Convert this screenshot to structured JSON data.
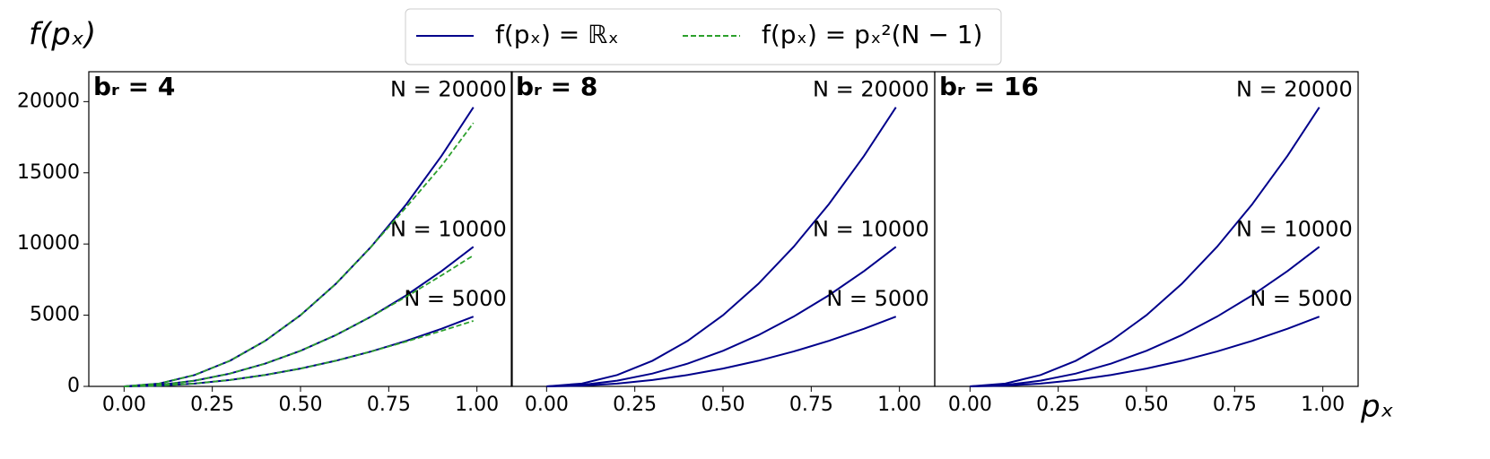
{
  "chart_data": [
    {
      "type": "line",
      "title": "bᵣ = 4",
      "ylabel": "f(pₓ)",
      "x": [
        0,
        0.1,
        0.2,
        0.3,
        0.4,
        0.5,
        0.6,
        0.7,
        0.8,
        0.9,
        0.99
      ],
      "xlim": [
        -0.1,
        1.1
      ],
      "ylim": [
        0,
        22100
      ],
      "xticks": [
        {
          "value": 0,
          "label": "0.00"
        },
        {
          "value": 0.25,
          "label": "0.25"
        },
        {
          "value": 0.5,
          "label": "0.50"
        },
        {
          "value": 0.75,
          "label": "0.75"
        },
        {
          "value": 1,
          "label": "1.00"
        }
      ],
      "yticks": [
        0,
        5000,
        10000,
        15000,
        20000
      ],
      "series": [
        {
          "name": "f(pₓ) = ℝₓ",
          "label": "N = 20000",
          "color": "#00008b",
          "values": [
            0,
            200,
            800,
            1800,
            3200,
            5000,
            7200,
            9800,
            12800,
            16200,
            19602
          ]
        },
        {
          "name": "f(pₓ) = ℝₓ",
          "label": "N = 10000",
          "color": "#00008b",
          "values": [
            0,
            100,
            400,
            900,
            1600,
            2500,
            3600,
            4900,
            6400,
            8100,
            9801
          ]
        },
        {
          "name": "f(pₓ) = ℝₓ",
          "label": "N = 5000",
          "color": "#00008b",
          "values": [
            0,
            50,
            200,
            450,
            800,
            1250,
            1800,
            2450,
            3200,
            4050,
            4900
          ]
        },
        {
          "name": "f(pₓ) = pₓ²(N − 1)",
          "color": "#2ca02c",
          "dashed": true,
          "values": [
            0,
            200,
            800,
            1800,
            3200,
            5000,
            7200,
            9800,
            12600,
            15500,
            18500
          ]
        },
        {
          "name": "f(pₓ) = pₓ²(N − 1)",
          "color": "#2ca02c",
          "dashed": true,
          "values": [
            0,
            100,
            400,
            900,
            1600,
            2500,
            3600,
            4900,
            6300,
            7800,
            9200
          ]
        },
        {
          "name": "f(pₓ) = pₓ²(N − 1)",
          "color": "#2ca02c",
          "dashed": true,
          "values": [
            0,
            50,
            200,
            450,
            800,
            1250,
            1800,
            2450,
            3150,
            3900,
            4600
          ]
        }
      ]
    },
    {
      "type": "line",
      "title": "bᵣ = 8",
      "x": [
        0,
        0.1,
        0.2,
        0.3,
        0.4,
        0.5,
        0.6,
        0.7,
        0.8,
        0.9,
        0.99
      ],
      "xlim": [
        -0.1,
        1.1
      ],
      "ylim": [
        0,
        22100
      ],
      "xticks": [
        {
          "value": 0,
          "label": "0.00"
        },
        {
          "value": 0.25,
          "label": "0.25"
        },
        {
          "value": 0.5,
          "label": "0.50"
        },
        {
          "value": 0.75,
          "label": "0.75"
        },
        {
          "value": 1,
          "label": "1.00"
        }
      ],
      "series": [
        {
          "name": "f(pₓ) = ℝₓ",
          "label": "N = 20000",
          "color": "#00008b",
          "values": [
            0,
            200,
            800,
            1800,
            3200,
            5000,
            7200,
            9800,
            12800,
            16200,
            19602
          ]
        },
        {
          "name": "f(pₓ) = ℝₓ",
          "label": "N = 10000",
          "color": "#00008b",
          "values": [
            0,
            100,
            400,
            900,
            1600,
            2500,
            3600,
            4900,
            6400,
            8100,
            9801
          ]
        },
        {
          "name": "f(pₓ) = ℝₓ",
          "label": "N = 5000",
          "color": "#00008b",
          "values": [
            0,
            50,
            200,
            450,
            800,
            1250,
            1800,
            2450,
            3200,
            4050,
            4900
          ]
        }
      ]
    },
    {
      "type": "line",
      "title": "bᵣ = 16",
      "xlabel": "pₓ",
      "x": [
        0,
        0.1,
        0.2,
        0.3,
        0.4,
        0.5,
        0.6,
        0.7,
        0.8,
        0.9,
        0.99
      ],
      "xlim": [
        -0.1,
        1.1
      ],
      "ylim": [
        0,
        22100
      ],
      "xticks": [
        {
          "value": 0,
          "label": "0.00"
        },
        {
          "value": 0.25,
          "label": "0.25"
        },
        {
          "value": 0.5,
          "label": "0.50"
        },
        {
          "value": 0.75,
          "label": "0.75"
        },
        {
          "value": 1,
          "label": "1.00"
        }
      ],
      "series": [
        {
          "name": "f(pₓ) = ℝₓ",
          "label": "N = 20000",
          "color": "#00008b",
          "values": [
            0,
            200,
            800,
            1800,
            3200,
            5000,
            7200,
            9800,
            12800,
            16200,
            19602
          ]
        },
        {
          "name": "f(pₓ) = ℝₓ",
          "label": "N = 10000",
          "color": "#00008b",
          "values": [
            0,
            100,
            400,
            900,
            1600,
            2500,
            3600,
            4900,
            6400,
            8100,
            9801
          ]
        },
        {
          "name": "f(pₓ) = ℝₓ",
          "label": "N = 5000",
          "color": "#00008b",
          "values": [
            0,
            50,
            200,
            450,
            800,
            1250,
            1800,
            2450,
            3200,
            4050,
            4900
          ]
        }
      ]
    }
  ]
}
